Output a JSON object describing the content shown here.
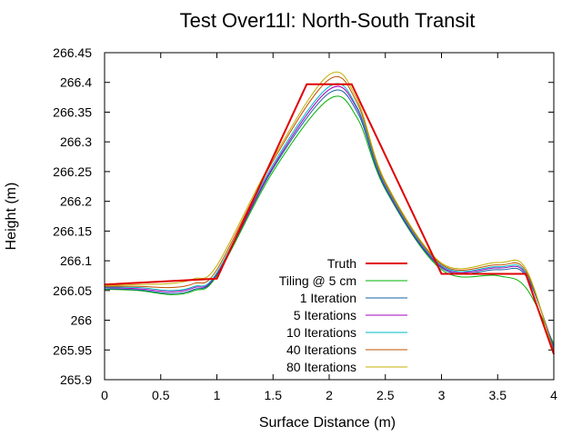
{
  "chart_data": {
    "type": "line",
    "title": "Test Over11l: North-South Transit",
    "xlabel": "Surface Distance (m)",
    "ylabel": "Height (m)",
    "xlim": [
      0,
      4
    ],
    "ylim": [
      265.9,
      266.45
    ],
    "x_ticks": [
      "0",
      "0.5",
      "1",
      "1.5",
      "2",
      "2.5",
      "3",
      "3.5",
      "4"
    ],
    "y_ticks": [
      "265.9",
      "265.95",
      "266",
      "266.05",
      "266.1",
      "266.15",
      "266.2",
      "266.25",
      "266.3",
      "266.35",
      "266.4",
      "266.45"
    ],
    "grid": false,
    "legend_position": "bottom-center",
    "series": [
      {
        "name": "Truth",
        "color": "#e00000",
        "x": [
          0,
          1.0,
          1.8,
          2.2,
          3.0,
          3.75,
          4.0
        ],
        "y": [
          266.06,
          266.07,
          266.397,
          266.397,
          266.078,
          266.078,
          265.943
        ]
      },
      {
        "name": "Tiling @ 5 cm",
        "color": "#00b000",
        "x": [
          0,
          0.3,
          0.6,
          0.8,
          1.0,
          1.5,
          2.0,
          2.25,
          2.5,
          3.0,
          3.5,
          3.75,
          4.0
        ],
        "y": [
          266.052,
          266.05,
          266.043,
          266.05,
          266.075,
          266.25,
          266.372,
          266.34,
          266.22,
          266.085,
          266.075,
          266.055,
          265.96
        ]
      },
      {
        "name": "1 Iteration",
        "color": "#1060a0",
        "x": [
          0,
          0.3,
          0.6,
          0.8,
          1.0,
          1.5,
          2.0,
          2.25,
          2.5,
          3.0,
          3.5,
          3.75,
          4.0
        ],
        "y": [
          266.053,
          266.051,
          266.045,
          266.052,
          266.077,
          266.255,
          266.382,
          266.35,
          266.222,
          266.088,
          266.085,
          266.075,
          265.955
        ]
      },
      {
        "name": "5 Iterations",
        "color": "#a000c0",
        "x": [
          0,
          0.3,
          0.6,
          0.8,
          1.0,
          1.5,
          2.0,
          2.25,
          2.5,
          3.0,
          3.5,
          3.75,
          4.0
        ],
        "y": [
          266.055,
          266.053,
          266.048,
          266.055,
          266.078,
          266.258,
          266.388,
          266.355,
          266.225,
          266.09,
          266.088,
          266.078,
          265.953
        ]
      },
      {
        "name": "10 Iterations",
        "color": "#00b8c0",
        "x": [
          0,
          0.3,
          0.6,
          0.8,
          1.0,
          1.5,
          2.0,
          2.25,
          2.5,
          3.0,
          3.5,
          3.75,
          4.0
        ],
        "y": [
          266.056,
          266.055,
          266.05,
          266.057,
          266.08,
          266.262,
          266.393,
          266.358,
          266.227,
          266.092,
          266.09,
          266.08,
          265.95
        ]
      },
      {
        "name": "40 Iterations",
        "color": "#c05000",
        "x": [
          0,
          0.3,
          0.6,
          0.8,
          1.0,
          1.5,
          2.0,
          2.25,
          2.5,
          3.0,
          3.5,
          3.75,
          4.0
        ],
        "y": [
          266.057,
          266.057,
          266.055,
          266.062,
          266.085,
          266.268,
          266.405,
          266.365,
          266.23,
          266.094,
          266.093,
          266.083,
          265.947
        ]
      },
      {
        "name": "80 Iterations",
        "color": "#c0b000",
        "x": [
          0,
          0.3,
          0.6,
          0.8,
          1.0,
          1.5,
          2.0,
          2.25,
          2.5,
          3.0,
          3.5,
          3.75,
          4.0
        ],
        "y": [
          266.058,
          266.06,
          266.062,
          266.07,
          266.092,
          266.272,
          266.413,
          266.37,
          266.233,
          266.096,
          266.097,
          266.087,
          265.944
        ]
      }
    ]
  }
}
